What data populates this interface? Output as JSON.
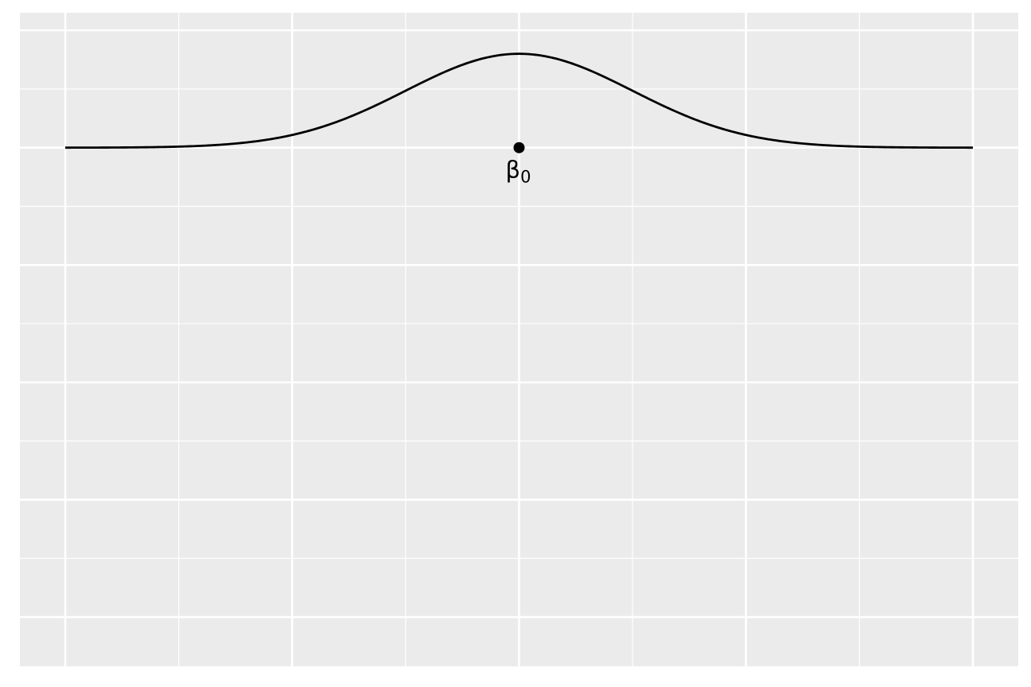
{
  "chart_data": {
    "type": "line",
    "title": "",
    "xlabel": "",
    "ylabel": "",
    "xlim": [
      -4.4,
      4.4
    ],
    "ylim": [
      -4.42,
      1.15
    ],
    "grid": true,
    "axis_ticks_shown": false,
    "x_major_breaks": [
      -4,
      -2,
      0,
      2,
      4
    ],
    "x_minor_breaks": [
      -3,
      -1,
      1,
      3
    ],
    "y_major_breaks": [
      -4,
      -3,
      -2,
      -1,
      0,
      1
    ],
    "y_minor_breaks": [
      -3.5,
      -2.5,
      -1.5,
      -0.5,
      0.5
    ],
    "series": [
      {
        "kind": "normal-density-curve",
        "baseline": 0,
        "mean": 0,
        "sd": 1,
        "peak_height": 0.8,
        "x_range": [
          -4,
          4
        ],
        "color": "#000000"
      }
    ],
    "points": [
      {
        "x": 0,
        "y": 0,
        "label": "β",
        "label_subscript": "0"
      }
    ],
    "background_color": "#ebebeb",
    "grid_color": "#ffffff"
  }
}
